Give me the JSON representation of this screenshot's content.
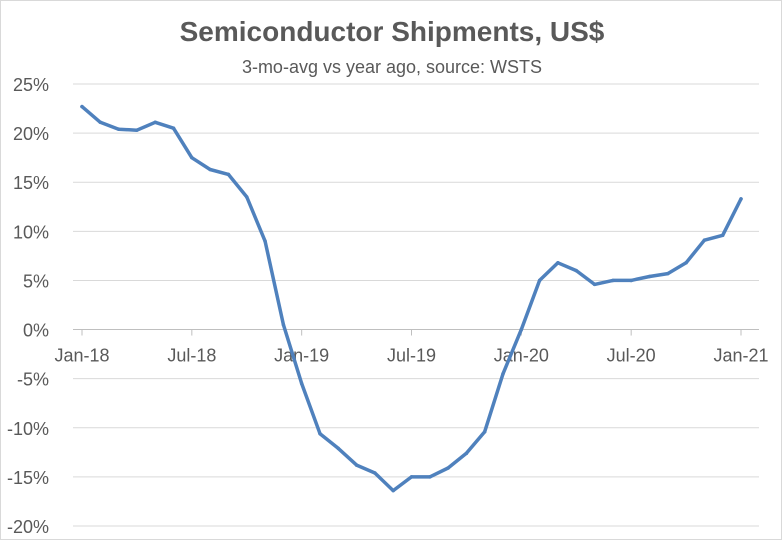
{
  "chart_data": {
    "type": "line",
    "title": "Semiconductor Shipments, US$",
    "subtitle": "3-mo-avg vs year ago, source: WSTS",
    "xlabel": "",
    "ylabel": "",
    "ylim": [
      -20,
      25
    ],
    "y_ticks": [
      25,
      20,
      15,
      10,
      5,
      0,
      -5,
      -10,
      -15,
      -20
    ],
    "y_tick_labels": [
      "25%",
      "20%",
      "15%",
      "10%",
      "5%",
      "0%",
      "-5%",
      "-10%",
      "-15%",
      "-20%"
    ],
    "x_tick_labels": [
      "Jan-18",
      "Jul-18",
      "Jan-19",
      "Jul-19",
      "Jan-20",
      "Jul-20",
      "Jan-21"
    ],
    "x_tick_indices": [
      0,
      6,
      12,
      18,
      24,
      30,
      36
    ],
    "grid": true,
    "legend": "none",
    "line_color": "#4f81bd",
    "categories": [
      "Jan-18",
      "Feb-18",
      "Mar-18",
      "Apr-18",
      "May-18",
      "Jun-18",
      "Jul-18",
      "Aug-18",
      "Sep-18",
      "Oct-18",
      "Nov-18",
      "Dec-18",
      "Jan-19",
      "Feb-19",
      "Mar-19",
      "Apr-19",
      "May-19",
      "Jun-19",
      "Jul-19",
      "Aug-19",
      "Sep-19",
      "Oct-19",
      "Nov-19",
      "Dec-19",
      "Jan-20",
      "Feb-20",
      "Mar-20",
      "Apr-20",
      "May-20",
      "Jun-20",
      "Jul-20",
      "Aug-20",
      "Sep-20",
      "Oct-20",
      "Nov-20",
      "Dec-20",
      "Jan-21"
    ],
    "values": [
      22.7,
      21.1,
      20.4,
      20.3,
      21.1,
      20.5,
      17.5,
      16.3,
      15.8,
      13.5,
      9.0,
      0.5,
      -5.5,
      -10.6,
      -12.1,
      -13.8,
      -14.6,
      -16.4,
      -15.0,
      -15.0,
      -14.1,
      -12.6,
      -10.4,
      -4.5,
      0.0,
      5.0,
      6.8,
      6.0,
      4.6,
      5.0,
      5.0,
      5.4,
      5.7,
      6.8,
      9.1,
      9.6,
      13.3
    ]
  }
}
